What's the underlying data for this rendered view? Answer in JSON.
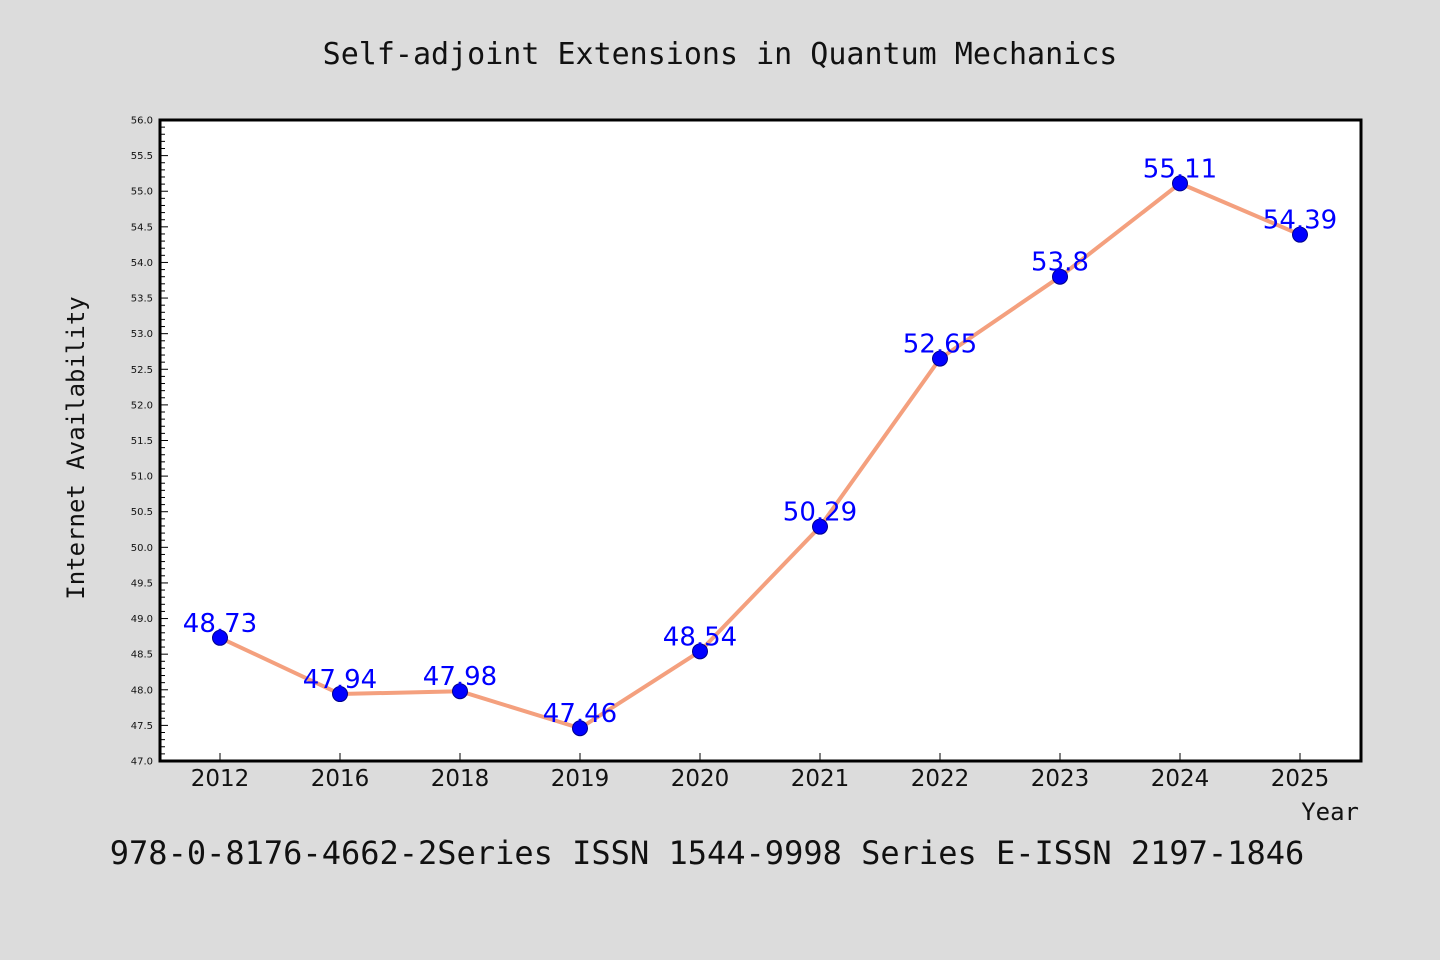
{
  "colors": {
    "background": "#dcdcdc",
    "plot_background": "#ffffff",
    "line": "#f4a07e",
    "marker": "#0000ff",
    "marker_edge": "#00008b",
    "data_label": "#0000ff"
  },
  "footer": "978-0-8176-4662-2Series ISSN 1544-9998 Series E-ISSN 2197-1846",
  "chart_data": {
    "type": "line",
    "title": "Self-adjoint Extensions in Quantum Mechanics",
    "xlabel": "Year",
    "ylabel": "Internet Availability",
    "categories": [
      "2012",
      "2016",
      "2018",
      "2019",
      "2020",
      "2021",
      "2022",
      "2023",
      "2024",
      "2025"
    ],
    "series": [
      {
        "values": [
          48.73,
          47.94,
          47.98,
          47.46,
          48.54,
          50.29,
          52.65,
          53.8,
          55.11,
          54.39
        ]
      }
    ],
    "data_labels": [
      "48.73",
      "47.94",
      "47.98",
      "47.46",
      "48.54",
      "50.29",
      "52.65",
      "53.8",
      "55.11",
      "54.39"
    ],
    "ylim": [
      47.0,
      56.0
    ],
    "yticks": [
      "47.0",
      "47.5",
      "48.0",
      "48.5",
      "49.0",
      "49.5",
      "50.0",
      "50.5",
      "51.0",
      "51.5",
      "52.0",
      "52.5",
      "53.0",
      "53.5",
      "54.0",
      "54.5",
      "55.0",
      "55.5",
      "56.0"
    ],
    "grid": false,
    "legend": "none"
  }
}
